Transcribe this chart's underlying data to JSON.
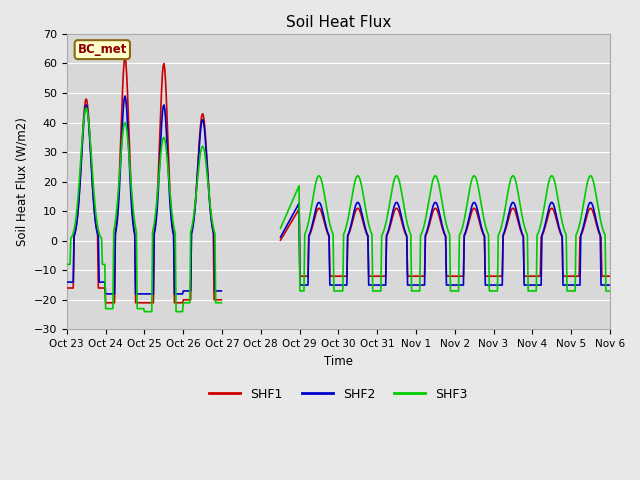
{
  "title": "Soil Heat Flux",
  "ylabel": "Soil Heat Flux (W/m2)",
  "xlabel": "Time",
  "ylim": [
    -30,
    70
  ],
  "background_color": "#e8e8e8",
  "plot_bg_color": "#d8d8d8",
  "grid_color": "white",
  "annotation_text": "BC_met",
  "annotation_bg": "#ffffcc",
  "annotation_border": "#8b6914",
  "x_tick_labels": [
    "Oct 23",
    "Oct 24",
    "Oct 25",
    "Oct 26",
    "Oct 27",
    "Oct 28",
    "Oct 29",
    "Oct 30",
    "Oct 31",
    "Nov 1",
    "Nov 2",
    "Nov 3",
    "Nov 4",
    "Nov 5",
    "Nov 6"
  ],
  "line_colors": {
    "SHF1": "#cc0000",
    "SHF2": "#0000cc",
    "SHF3": "#00cc00"
  },
  "line_width": 1.2
}
